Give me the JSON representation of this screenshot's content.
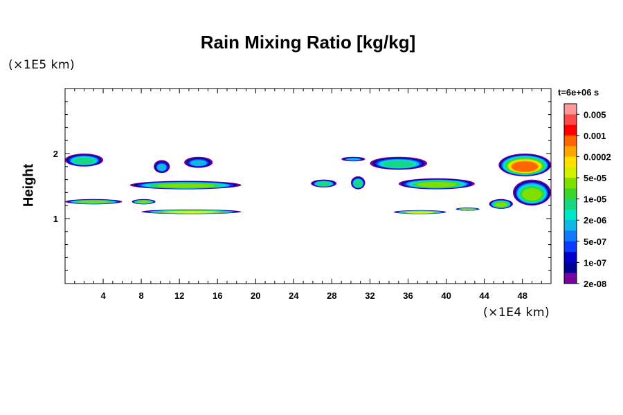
{
  "chart_data": {
    "type": "contour",
    "title": "Rain Mixing Ratio [kg/kg]",
    "ylabel": "Height",
    "xlabel": "",
    "x_multiplier": "(×1E4 km)",
    "y_multiplier": "(×1E5 km)",
    "time_label": "t=6e+06 s",
    "xlim": [
      0,
      51
    ],
    "ylim": [
      0,
      3
    ],
    "x_ticks": [
      4,
      8,
      12,
      16,
      20,
      24,
      28,
      32,
      36,
      40,
      44,
      48
    ],
    "y_ticks": [
      1,
      2
    ],
    "colorbar": {
      "labels": [
        "0.005",
        "0.001",
        "0.0002",
        "5e-05",
        "1e-05",
        "2e-06",
        "5e-07",
        "1e-07",
        "2e-08"
      ],
      "colors": [
        "#ff9999",
        "#ff4a4a",
        "#ff0000",
        "#ff6600",
        "#ffa500",
        "#ffe000",
        "#d2f000",
        "#7fe000",
        "#3cd62a",
        "#19d780",
        "#00e6c8",
        "#10b8e8",
        "#1478ff",
        "#0a3cff",
        "#0000c8",
        "#000096",
        "#7a00a0"
      ]
    },
    "features": [
      {
        "x": [
          0,
          4
        ],
        "y": [
          1.8,
          2.0
        ],
        "peak": "2e-06"
      },
      {
        "x": [
          9.3,
          11
        ],
        "y": [
          1.7,
          1.9
        ],
        "peak": "5e-07"
      },
      {
        "x": [
          12.5,
          15.5
        ],
        "y": [
          1.78,
          1.95
        ],
        "peak": "5e-07"
      },
      {
        "x": [
          6.8,
          18.5
        ],
        "y": [
          1.45,
          1.58
        ],
        "peak": "1e-05"
      },
      {
        "x": [
          0,
          6
        ],
        "y": [
          1.22,
          1.3
        ],
        "peak": "1e-05"
      },
      {
        "x": [
          7,
          9.5
        ],
        "y": [
          1.22,
          1.3
        ],
        "peak": "1e-05"
      },
      {
        "x": [
          8,
          18.5
        ],
        "y": [
          1.07,
          1.14
        ],
        "peak": "5e-05"
      },
      {
        "x": [
          25.8,
          28.5
        ],
        "y": [
          1.48,
          1.6
        ],
        "peak": "2e-06"
      },
      {
        "x": [
          30,
          31.5
        ],
        "y": [
          1.45,
          1.65
        ],
        "peak": "2e-06"
      },
      {
        "x": [
          29,
          31.5
        ],
        "y": [
          1.88,
          1.95
        ],
        "peak": "5e-07"
      },
      {
        "x": [
          32,
          38
        ],
        "y": [
          1.75,
          1.95
        ],
        "peak": "2e-06"
      },
      {
        "x": [
          35,
          43
        ],
        "y": [
          1.45,
          1.62
        ],
        "peak": "1e-05"
      },
      {
        "x": [
          34.5,
          40
        ],
        "y": [
          1.07,
          1.13
        ],
        "peak": "5e-05"
      },
      {
        "x": [
          45.5,
          51
        ],
        "y": [
          1.65,
          2.0
        ],
        "peak": "0.0002"
      },
      {
        "x": [
          47,
          51
        ],
        "y": [
          1.2,
          1.6
        ],
        "peak": "1e-05"
      },
      {
        "x": [
          41,
          43.5
        ],
        "y": [
          1.12,
          1.17
        ],
        "peak": "1e-05"
      },
      {
        "x": [
          44.5,
          47
        ],
        "y": [
          1.15,
          1.3
        ],
        "peak": "1e-05"
      }
    ]
  }
}
